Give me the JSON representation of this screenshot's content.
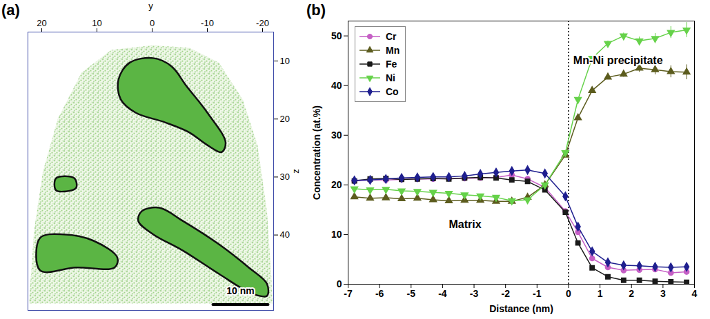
{
  "chart_data": [
    {
      "type": "reconstruction",
      "title": "(a)",
      "xlabel": "y",
      "ylabel": "z",
      "xlim": [
        22.5,
        -22
      ],
      "xticks": [
        20,
        10,
        0,
        -10,
        -20
      ],
      "ylim": [
        53,
        5
      ],
      "yticks": [
        10,
        20,
        30,
        40
      ],
      "outline": {
        "y": [
          22.3,
          21.4,
          19.8,
          17.1,
          12.8,
          7.4,
          0,
          -6.7,
          -12.1,
          -16.4,
          -19.1,
          -20.8,
          -21.6,
          -21.8
        ],
        "z": [
          51.8,
          39.3,
          29.1,
          20.0,
          12.0,
          8.1,
          7.3,
          7.7,
          10.3,
          16.6,
          24.5,
          35.9,
          47.3,
          51.8
        ]
      },
      "precipitates": [
        {
          "y": [
            6.1,
            4.1,
            -0.2,
            -3.5,
            -6.2,
            -10.0,
            -13.3,
            -12.6,
            -10.0,
            -6.7,
            -2.4,
            3.0,
            5.7
          ],
          "z": [
            13.2,
            10.3,
            9.5,
            10.9,
            14.3,
            18.9,
            24.0,
            25.7,
            24.5,
            22.3,
            20.6,
            18.9,
            16.6
          ]
        },
        {
          "y": [
            17.4,
            14.1,
            13.8,
            17.4
          ],
          "z": [
            30.2,
            30.2,
            31.9,
            32.3
          ]
        },
        {
          "y": [
            1.9,
            -1.3,
            -5.6,
            -12.1,
            -17.5,
            -20.8,
            -20.8,
            -18.1,
            -12.1,
            -5.6,
            -0.2,
            2.5
          ],
          "z": [
            35.9,
            35.3,
            37.6,
            41.6,
            45.6,
            48.4,
            50.5,
            50.1,
            46.7,
            42.7,
            39.9,
            37.6
          ]
        },
        {
          "y": [
            20.3,
            16.0,
            10.6,
            6.3,
            6.8,
            13.8,
            20.3
          ],
          "z": [
            40.5,
            39.9,
            41.0,
            43.9,
            45.6,
            45.6,
            46.1
          ]
        }
      ],
      "scale_bar": {
        "label": "10 nm",
        "length": 10
      }
    },
    {
      "type": "line",
      "title": "(b)",
      "xlabel": "Distance (nm)",
      "ylabel": "Concentration (at.%)",
      "xlim": [
        -7,
        4
      ],
      "xticks": [
        -7,
        -6,
        -5,
        -4,
        -3,
        -2,
        -1,
        0,
        1,
        2,
        3,
        4
      ],
      "ylim": [
        0,
        53
      ],
      "yticks": [
        0,
        10,
        20,
        30,
        40,
        50
      ],
      "legend": "top-left",
      "vlines": [
        0
      ],
      "annotations": [
        {
          "text": "Matrix",
          "x": -3.8,
          "y": 12
        },
        {
          "text": "Mn-Ni precipitate",
          "x": 0.15,
          "y": 45
        }
      ],
      "x": [
        -6.8,
        -6.3,
        -5.8,
        -5.3,
        -4.8,
        -4.3,
        -3.8,
        -3.3,
        -2.8,
        -2.3,
        -1.8,
        -1.3,
        -0.75,
        -0.1,
        0.3,
        0.75,
        1.25,
        1.75,
        2.25,
        2.75,
        3.25,
        3.75
      ],
      "series": [
        {
          "name": "Cr",
          "color": "#c55fc5",
          "marker": "circle",
          "values": [
            20.8,
            21.0,
            21.0,
            21.1,
            21.2,
            21.2,
            21.3,
            21.3,
            21.4,
            21.5,
            22.0,
            21.2,
            19.5,
            14.7,
            10.5,
            5.2,
            3.4,
            2.8,
            2.9,
            3.0,
            2.3,
            2.5
          ],
          "errors": [
            0.2,
            0.2,
            0.2,
            0.2,
            0.2,
            0.2,
            0.2,
            0.2,
            0.2,
            0.2,
            0.2,
            0.2,
            0.3,
            0.3,
            0.3,
            0.3,
            0.3,
            0.3,
            0.4,
            0.5,
            0.6,
            0.7
          ]
        },
        {
          "name": "Mn",
          "color": "#5c5c1e",
          "marker": "triangle",
          "values": [
            17.6,
            17.3,
            17.4,
            17.2,
            17.3,
            17.0,
            16.8,
            16.9,
            16.9,
            16.7,
            16.7,
            17.5,
            20.0,
            26.0,
            33.5,
            39.0,
            41.7,
            42.3,
            43.5,
            43.2,
            42.8,
            42.7
          ],
          "errors": [
            0.2,
            0.2,
            0.2,
            0.2,
            0.2,
            0.2,
            0.2,
            0.2,
            0.2,
            0.2,
            0.2,
            0.2,
            0.3,
            0.3,
            0.4,
            0.4,
            0.5,
            0.6,
            0.8,
            1.0,
            1.2,
            1.5
          ]
        },
        {
          "name": "Fe",
          "color": "#1a1a1a",
          "marker": "square",
          "values": [
            20.8,
            21.2,
            21.3,
            21.1,
            21.2,
            21.3,
            21.2,
            21.4,
            21.5,
            21.4,
            21.0,
            20.7,
            19.0,
            14.5,
            8.3,
            3.3,
            1.5,
            0.8,
            0.8,
            0.6,
            0.5,
            0.4
          ],
          "errors": [
            0.2,
            0.2,
            0.2,
            0.2,
            0.2,
            0.2,
            0.2,
            0.2,
            0.2,
            0.2,
            0.2,
            0.2,
            0.2,
            0.2,
            0.2,
            0.2,
            0.2,
            0.2,
            0.2,
            0.2,
            0.3,
            0.3
          ]
        },
        {
          "name": "Ni",
          "color": "#66d24a",
          "marker": "triangle-down",
          "values": [
            19.2,
            19.0,
            19.1,
            18.8,
            18.7,
            18.5,
            18.3,
            18.0,
            17.8,
            17.5,
            16.8,
            17.0,
            20.0,
            26.5,
            37.2,
            45.5,
            48.5,
            50.0,
            49.0,
            49.5,
            50.7,
            51.2
          ],
          "errors": [
            0.2,
            0.2,
            0.2,
            0.2,
            0.2,
            0.2,
            0.2,
            0.2,
            0.2,
            0.2,
            0.2,
            0.2,
            0.3,
            0.3,
            0.4,
            0.4,
            0.5,
            0.6,
            0.8,
            1.0,
            1.2,
            1.5
          ]
        },
        {
          "name": "Co",
          "color": "#1f1f8f",
          "marker": "diamond",
          "values": [
            20.9,
            21.0,
            21.2,
            21.4,
            21.5,
            21.6,
            21.6,
            21.8,
            22.2,
            22.5,
            22.8,
            23.0,
            22.3,
            17.7,
            11.6,
            6.6,
            4.4,
            3.8,
            3.7,
            3.5,
            3.4,
            3.5
          ],
          "errors": [
            0.2,
            0.2,
            0.2,
            0.2,
            0.2,
            0.2,
            0.2,
            0.2,
            0.2,
            0.2,
            0.2,
            0.2,
            0.3,
            0.3,
            0.3,
            0.3,
            0.3,
            0.4,
            0.5,
            0.6,
            0.7,
            0.8
          ]
        }
      ]
    }
  ]
}
